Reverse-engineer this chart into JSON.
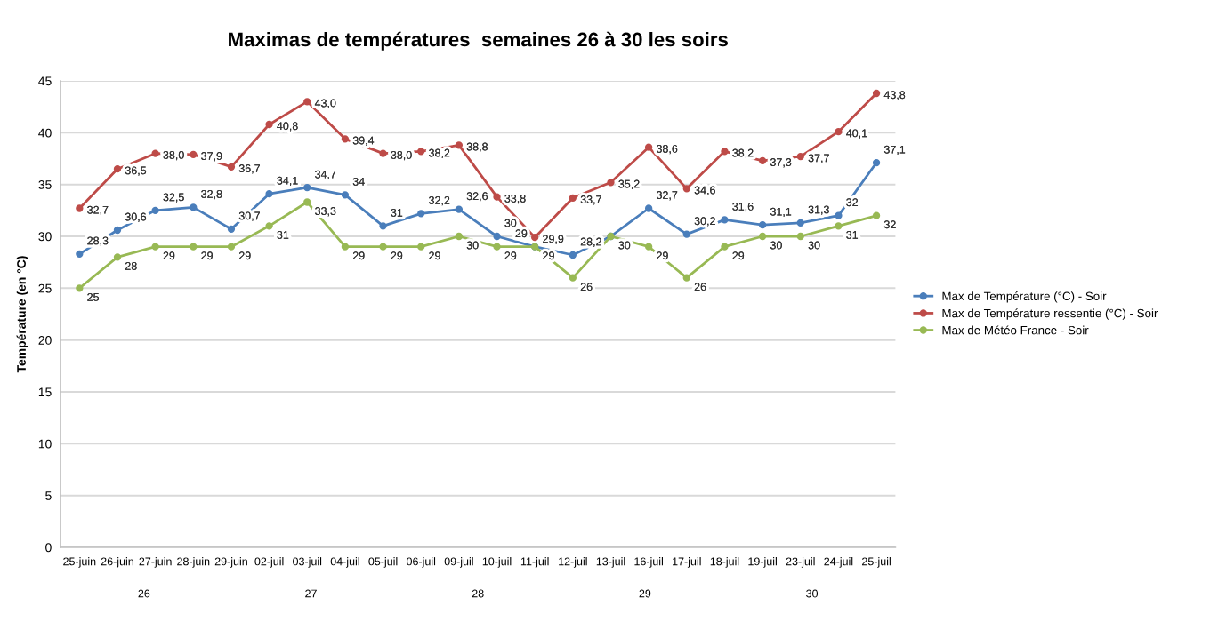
{
  "chart_data": {
    "type": "line",
    "title": "Maximas de températures  semaines 26 à 30 les soirs",
    "ylabel": "Température (en °C)",
    "categories": [
      "25-juin",
      "26-juin",
      "27-juin",
      "28-juin",
      "29-juin",
      "02-juil",
      "03-juil",
      "04-juil",
      "05-juil",
      "06-juil",
      "09-juil",
      "10-juil",
      "11-juil",
      "12-juil",
      "13-juil",
      "16-juil",
      "17-juil",
      "18-juil",
      "19-juil",
      "23-juil",
      "24-juil",
      "25-juil"
    ],
    "ylim": [
      0,
      45
    ],
    "yticks": [
      0,
      5,
      10,
      15,
      20,
      25,
      30,
      35,
      40,
      45
    ],
    "grid": "y",
    "legend": "right",
    "marker": "circle",
    "line_style": "solid",
    "annotations": [
      "26",
      "27",
      "28",
      "29",
      "30"
    ],
    "series": [
      {
        "name": "Max de Température (°C) - Soir",
        "color": "#4a7ebb",
        "values": [
          28.3,
          30.6,
          32.5,
          32.8,
          30.7,
          34.1,
          34.7,
          34,
          31,
          32.2,
          32.6,
          30,
          29,
          28.2,
          30,
          32.7,
          30.2,
          31.6,
          31.1,
          31.3,
          32,
          37.1
        ],
        "value_labels": [
          "28,3",
          "30,6",
          "32,5",
          "32,8",
          "30,7",
          "34,1",
          "34,7",
          "34",
          "31",
          "32,2",
          "32,6",
          "30",
          "29",
          "28,2",
          null,
          "32,7",
          "30,2",
          "31,6",
          "31,1",
          "31,3",
          "32",
          "37,1"
        ]
      },
      {
        "name": "Max de Température ressentie (°C) - Soir",
        "color": "#be4b48",
        "values": [
          32.7,
          36.5,
          38.0,
          37.9,
          36.7,
          40.8,
          43.0,
          39.4,
          38.0,
          38.2,
          38.8,
          33.8,
          29.9,
          33.7,
          35.2,
          38.6,
          34.6,
          38.2,
          37.3,
          37.7,
          40.1,
          43.8
        ],
        "value_labels": [
          "32,7",
          "36,5",
          "38,0",
          "37,9",
          "36,7",
          "40,8",
          "43,0",
          "39,4",
          "38,0",
          "38,2",
          "38,8",
          "33,8",
          "29,9",
          "33,7",
          "35,2",
          "38,6",
          "34,6",
          "38,2",
          "37,3",
          "37,7",
          "40,1",
          "43,8"
        ]
      },
      {
        "name": "Max de Météo France - Soir",
        "color": "#98b954",
        "values": [
          25,
          28,
          29,
          29,
          29,
          31,
          33.3,
          29,
          29,
          29,
          30,
          29,
          29,
          26,
          30,
          29,
          26,
          29,
          30,
          30,
          31,
          32
        ],
        "value_labels": [
          "25",
          "28",
          "29",
          "29",
          "29",
          "31",
          "33,3",
          "29",
          "29",
          "29",
          "30",
          "29",
          "29",
          "26",
          "30",
          "29",
          "26",
          "29",
          "30",
          "30",
          "31",
          "32"
        ]
      }
    ]
  }
}
